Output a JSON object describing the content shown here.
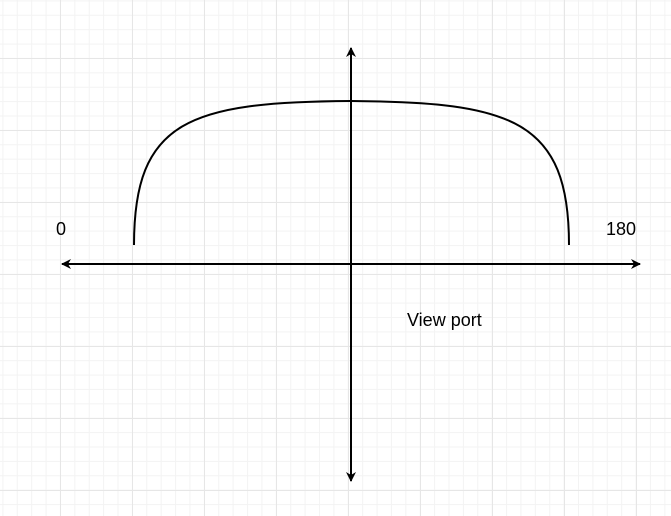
{
  "labels": {
    "left_value": "0",
    "right_value": "180",
    "caption": "View port"
  },
  "colors": {
    "stroke": "#000000",
    "grid": "#e6e6e6"
  }
}
